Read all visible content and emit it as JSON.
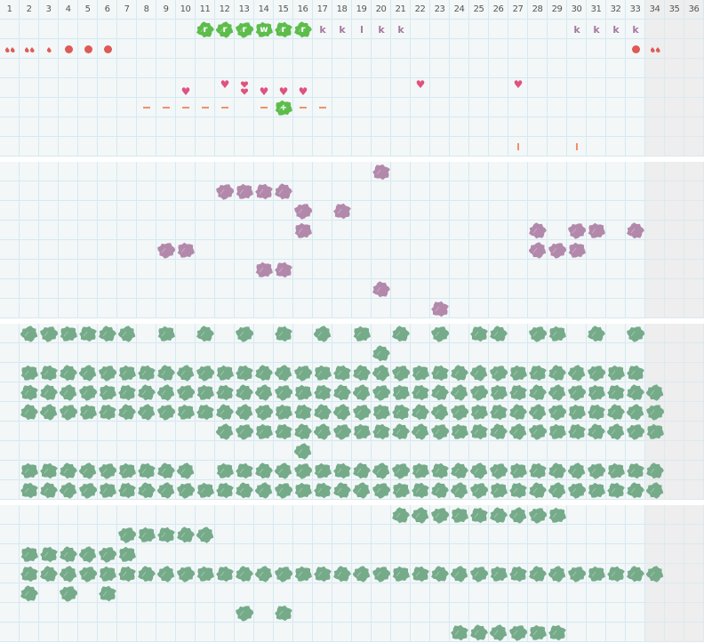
{
  "header": {
    "columns": [
      "1",
      "2",
      "3",
      "4",
      "5",
      "6",
      "7",
      "8",
      "9",
      "10",
      "11",
      "12",
      "13",
      "14",
      "15",
      "16",
      "17",
      "18",
      "19",
      "20",
      "21",
      "22",
      "23",
      "24",
      "25",
      "26",
      "27",
      "28",
      "29",
      "30",
      "31",
      "32",
      "33",
      "34",
      "35",
      "36"
    ],
    "shaded_columns": [
      "34",
      "35",
      "36"
    ]
  },
  "colors": {
    "grid_line": "#d5e9f1",
    "cell_bg": "#f3f7f8",
    "shaded_bg": "#eeeeee",
    "letter_blob": "#5dbd4b",
    "purple_blob": "#b389ab",
    "leaf_blob": "#76ab8a",
    "purple_letter": "#a57a9f",
    "drop": "#e05a55",
    "heart": "#e0527e",
    "dash": "#f0916a"
  },
  "sections": [
    {
      "name": "section-1",
      "rows": [
        [
          {
            "col": 11,
            "icon": "green-blob",
            "label": "r"
          },
          {
            "col": 12,
            "icon": "green-blob",
            "label": "r"
          },
          {
            "col": 13,
            "icon": "green-blob",
            "label": "r"
          },
          {
            "col": 14,
            "icon": "green-blob",
            "label": "w"
          },
          {
            "col": 15,
            "icon": "green-blob",
            "label": "r"
          },
          {
            "col": 16,
            "icon": "green-blob",
            "label": "r"
          },
          {
            "col": 17,
            "icon": "letter",
            "label": "k"
          },
          {
            "col": 18,
            "icon": "letter",
            "label": "k"
          },
          {
            "col": 19,
            "icon": "letter",
            "label": "l"
          },
          {
            "col": 20,
            "icon": "letter",
            "label": "k"
          },
          {
            "col": 21,
            "icon": "letter",
            "label": "k"
          },
          {
            "col": 30,
            "icon": "letter",
            "label": "k"
          },
          {
            "col": 31,
            "icon": "letter",
            "label": "k"
          },
          {
            "col": 32,
            "icon": "letter",
            "label": "k"
          },
          {
            "col": 33,
            "icon": "letter",
            "label": "k"
          }
        ],
        [
          {
            "col": 1,
            "icon": "double-drop"
          },
          {
            "col": 2,
            "icon": "double-drop"
          },
          {
            "col": 3,
            "icon": "drop"
          },
          {
            "col": 4,
            "icon": "dot"
          },
          {
            "col": 5,
            "icon": "dot"
          },
          {
            "col": 6,
            "icon": "dot"
          },
          {
            "col": 33,
            "icon": "dot"
          },
          {
            "col": 34,
            "icon": "double-drop"
          }
        ],
        [],
        [
          {
            "col": 10,
            "icon": "heart",
            "variant": "low"
          },
          {
            "col": 12,
            "icon": "heart",
            "variant": "high"
          },
          {
            "col": 13,
            "icon": "double-heart"
          },
          {
            "col": 14,
            "icon": "heart",
            "variant": "low"
          },
          {
            "col": 15,
            "icon": "heart",
            "variant": "low"
          },
          {
            "col": 16,
            "icon": "heart",
            "variant": "low"
          },
          {
            "col": 22,
            "icon": "heart",
            "variant": "high"
          },
          {
            "col": 27,
            "icon": "heart",
            "variant": "high"
          }
        ],
        [
          {
            "col": 8,
            "icon": "dash"
          },
          {
            "col": 9,
            "icon": "dash"
          },
          {
            "col": 10,
            "icon": "dash"
          },
          {
            "col": 11,
            "icon": "dash"
          },
          {
            "col": 12,
            "icon": "dash"
          },
          {
            "col": 14,
            "icon": "dash"
          },
          {
            "col": 15,
            "icon": "green-blob",
            "label": "+"
          },
          {
            "col": 16,
            "icon": "dash"
          },
          {
            "col": 17,
            "icon": "dash"
          }
        ],
        [],
        [
          {
            "col": 27,
            "icon": "tick"
          },
          {
            "col": 30,
            "icon": "tick"
          }
        ]
      ]
    },
    {
      "name": "section-2",
      "rows": [
        [
          {
            "col": 20,
            "icon": "purple-blob"
          }
        ],
        [
          {
            "from": 12,
            "to": 15,
            "icon": "purple-blob"
          }
        ],
        [
          {
            "col": 16,
            "icon": "purple-blob"
          },
          {
            "col": 18,
            "icon": "purple-blob"
          }
        ],
        [
          {
            "col": 16,
            "icon": "purple-blob"
          },
          {
            "col": 28,
            "icon": "purple-blob"
          },
          {
            "col": 30,
            "icon": "purple-blob"
          },
          {
            "col": 31,
            "icon": "purple-blob"
          },
          {
            "col": 33,
            "icon": "purple-blob"
          }
        ],
        [
          {
            "col": 9,
            "icon": "purple-blob"
          },
          {
            "col": 10,
            "icon": "purple-blob"
          },
          {
            "from": 28,
            "to": 30,
            "icon": "purple-blob"
          }
        ],
        [
          {
            "col": 14,
            "icon": "purple-blob"
          },
          {
            "col": 15,
            "icon": "purple-blob"
          }
        ],
        [
          {
            "col": 20,
            "icon": "purple-blob"
          }
        ],
        [
          {
            "col": 23,
            "icon": "purple-blob"
          }
        ]
      ]
    },
    {
      "name": "section-3",
      "rows": [
        [
          {
            "from": 2,
            "to": 7,
            "icon": "leaf-blob"
          },
          {
            "col": 9,
            "icon": "leaf-blob"
          },
          {
            "col": 11,
            "icon": "leaf-blob"
          },
          {
            "col": 13,
            "icon": "leaf-blob"
          },
          {
            "col": 15,
            "icon": "leaf-blob"
          },
          {
            "col": 17,
            "icon": "leaf-blob"
          },
          {
            "col": 19,
            "icon": "leaf-blob"
          },
          {
            "col": 21,
            "icon": "leaf-blob"
          },
          {
            "col": 23,
            "icon": "leaf-blob"
          },
          {
            "col": 25,
            "icon": "leaf-blob"
          },
          {
            "col": 26,
            "icon": "leaf-blob"
          },
          {
            "col": 28,
            "icon": "leaf-blob"
          },
          {
            "col": 29,
            "icon": "leaf-blob"
          },
          {
            "col": 31,
            "icon": "leaf-blob"
          },
          {
            "col": 33,
            "icon": "leaf-blob"
          }
        ],
        [
          {
            "col": 20,
            "icon": "leaf-blob"
          }
        ],
        [
          {
            "from": 2,
            "to": 33,
            "icon": "leaf-blob"
          }
        ],
        [
          {
            "from": 2,
            "to": 34,
            "icon": "leaf-blob"
          }
        ],
        [
          {
            "from": 2,
            "to": 34,
            "icon": "leaf-blob"
          }
        ],
        [
          {
            "from": 12,
            "to": 34,
            "icon": "leaf-blob"
          }
        ],
        [
          {
            "col": 16,
            "icon": "leaf-blob"
          }
        ],
        [
          {
            "from": 2,
            "to": 10,
            "icon": "leaf-blob"
          },
          {
            "from": 12,
            "to": 34,
            "icon": "leaf-blob"
          }
        ],
        [
          {
            "from": 2,
            "to": 34,
            "icon": "leaf-blob"
          }
        ]
      ]
    },
    {
      "name": "section-4",
      "rows": [
        [
          {
            "from": 21,
            "to": 29,
            "icon": "leaf-blob"
          }
        ],
        [
          {
            "from": 7,
            "to": 11,
            "icon": "leaf-blob"
          }
        ],
        [
          {
            "from": 2,
            "to": 7,
            "icon": "leaf-blob"
          }
        ],
        [
          {
            "from": 2,
            "to": 34,
            "icon": "leaf-blob"
          }
        ],
        [
          {
            "col": 2,
            "icon": "leaf-blob"
          },
          {
            "col": 4,
            "icon": "leaf-blob"
          },
          {
            "col": 6,
            "icon": "leaf-blob"
          }
        ],
        [
          {
            "col": 13,
            "icon": "leaf-blob"
          },
          {
            "col": 15,
            "icon": "leaf-blob"
          }
        ],
        [
          {
            "from": 24,
            "to": 29,
            "icon": "leaf-blob"
          }
        ]
      ]
    }
  ]
}
